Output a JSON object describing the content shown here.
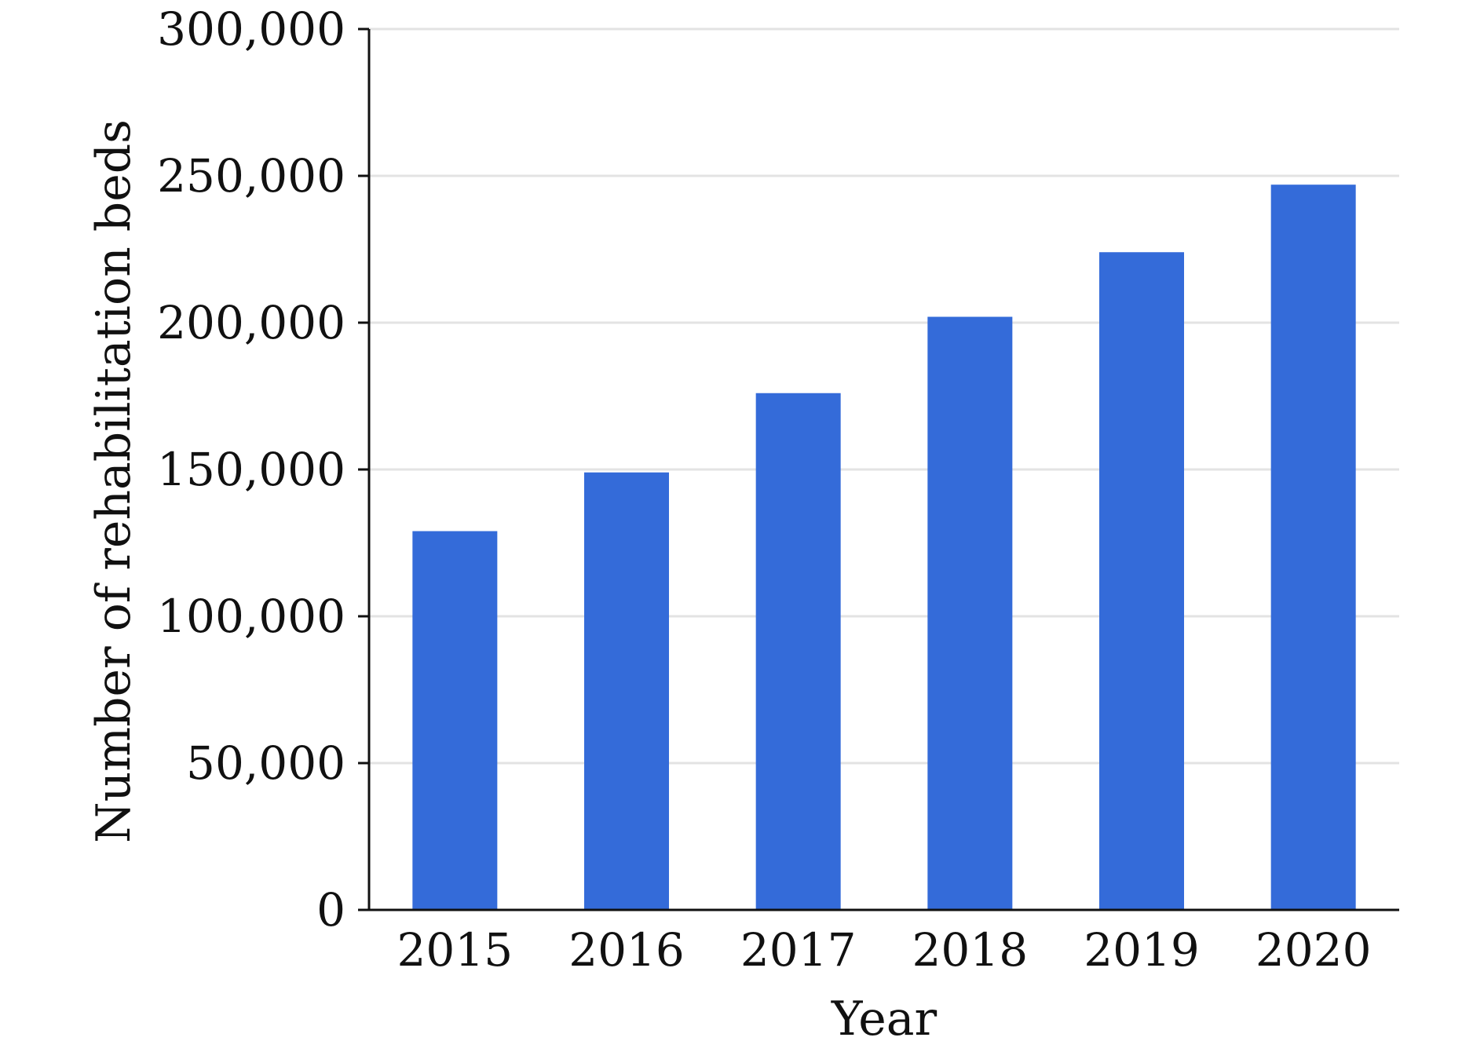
{
  "chart_data": {
    "type": "bar",
    "title": "",
    "xlabel": "Year",
    "ylabel": "Number of rehabilitation beds",
    "categories": [
      "2015",
      "2016",
      "2017",
      "2018",
      "2019",
      "2020"
    ],
    "values": [
      129000,
      149000,
      176000,
      202000,
      224000,
      247000
    ],
    "ylim": [
      0,
      300000
    ],
    "yticks": [
      0,
      50000,
      100000,
      150000,
      200000,
      250000,
      300000
    ],
    "ytick_labels": [
      "0",
      "50,000",
      "100,000",
      "150,000",
      "200,000",
      "250,000",
      "300,000"
    ],
    "grid": true,
    "legend": "none",
    "colors": {
      "bar": "#346bd9",
      "grid": "#e3e3e3",
      "axis": "#111111"
    }
  }
}
